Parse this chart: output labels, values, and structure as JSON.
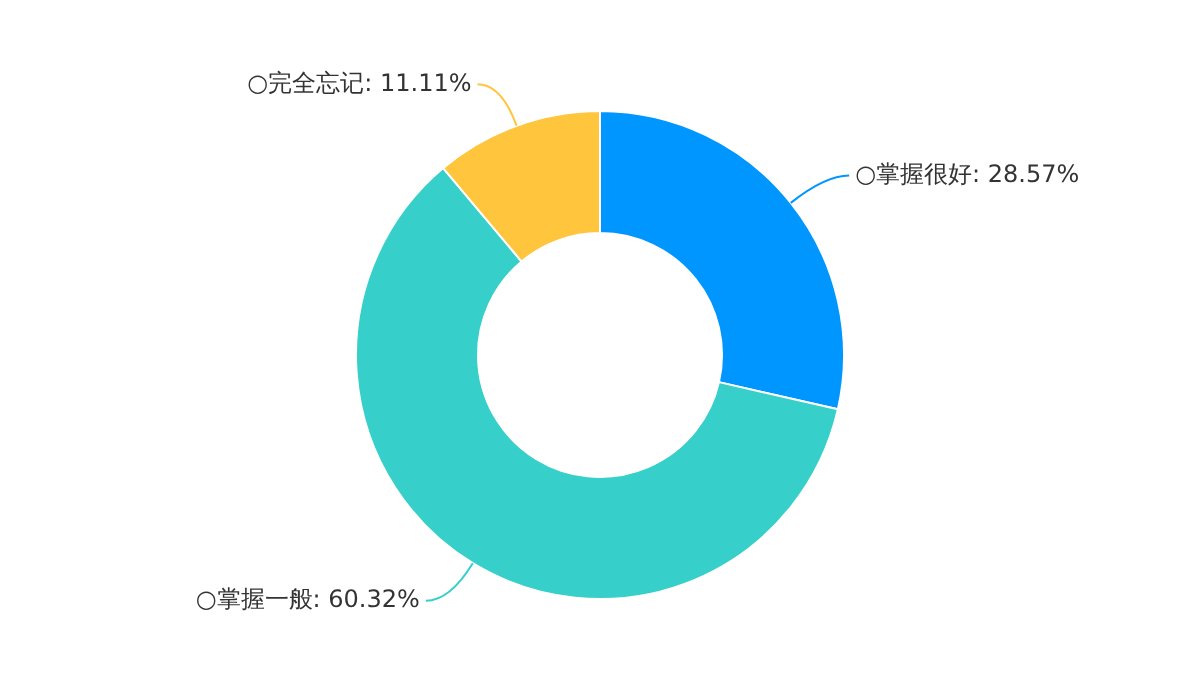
{
  "chart_data": {
    "type": "donut",
    "categories": [
      "○掌握很好",
      "○掌握一般",
      "○完全忘记"
    ],
    "values": [
      28.57,
      60.32,
      11.11
    ],
    "value_labels": [
      "28.57%",
      "60.32%",
      "11.11%"
    ],
    "colors": [
      "#0096ff",
      "#36cfc9",
      "#ffc53d"
    ],
    "legend": false
  }
}
